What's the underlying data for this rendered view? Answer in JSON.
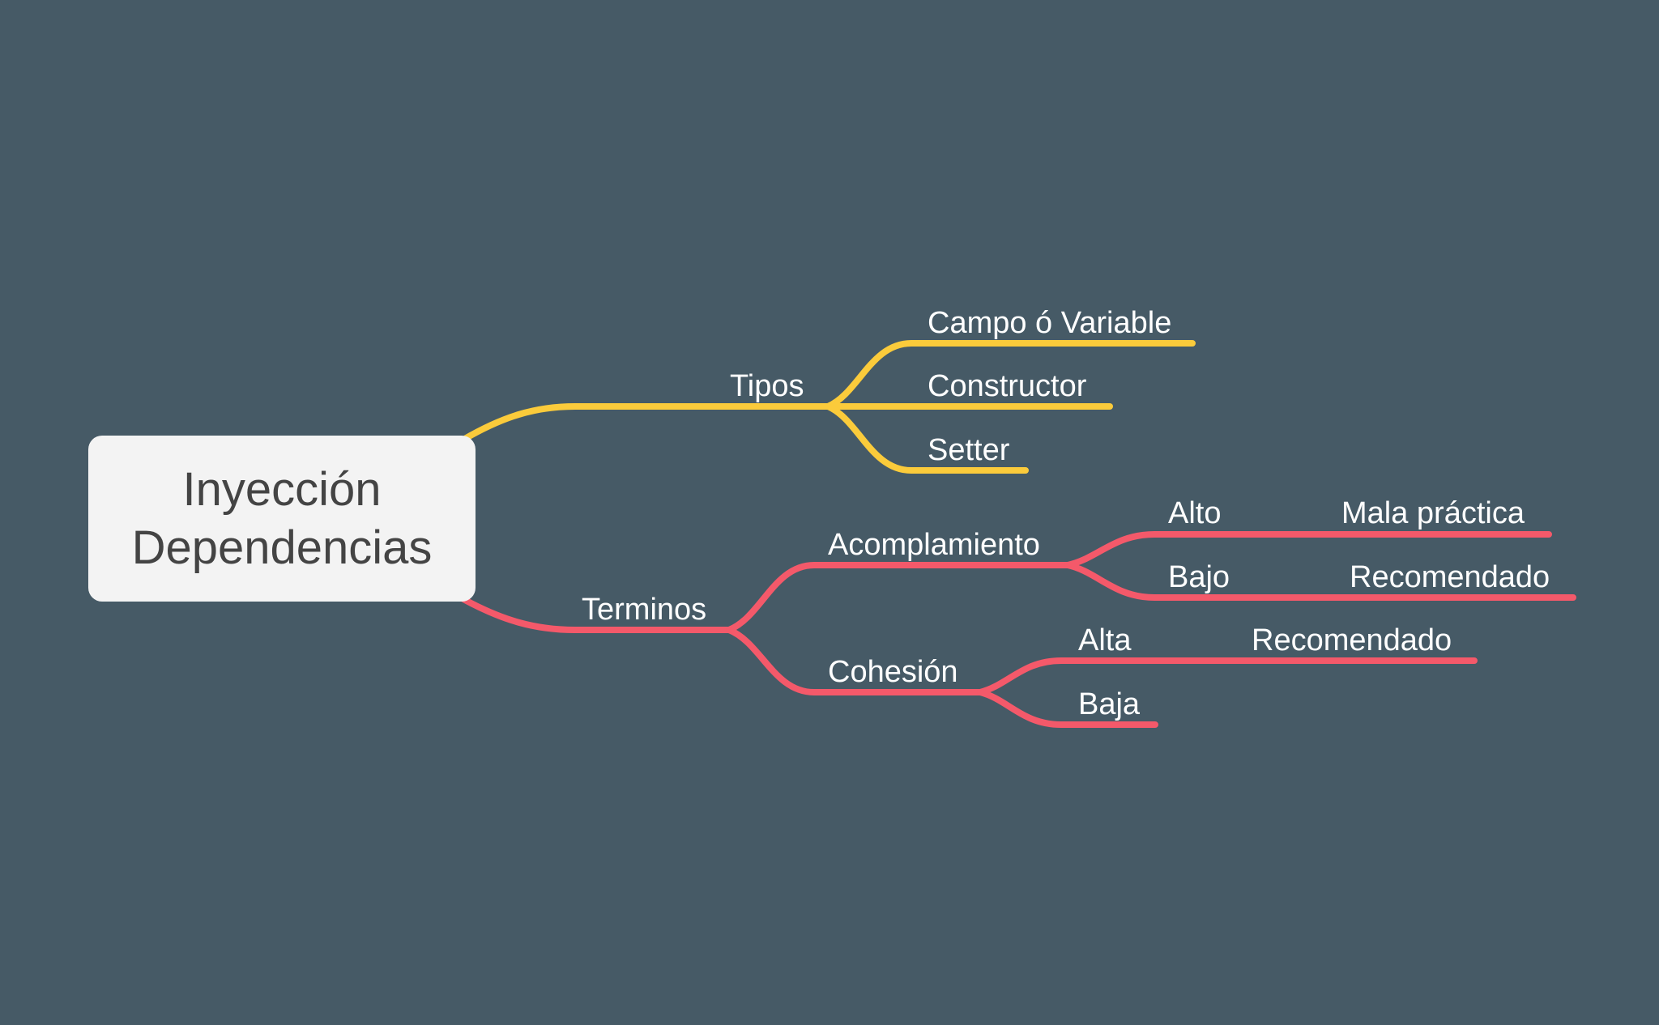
{
  "colors": {
    "background": "#465A66",
    "root_fill": "#F3F3F3",
    "root_text": "#444444",
    "label_text": "#FFFFFF"
  },
  "root": {
    "line1": "Inyección",
    "line2": "Dependencias"
  },
  "branches": [
    {
      "label": "Tipos",
      "color": "#FBCB3B",
      "children": [
        {
          "label": "Campo ó Variable"
        },
        {
          "label": "Constructor"
        },
        {
          "label": "Setter"
        }
      ]
    },
    {
      "label": "Terminos",
      "color": "#F4596A",
      "children": [
        {
          "label": "Acomplamiento",
          "children": [
            {
              "label": "Alto",
              "children": [
                {
                  "label": "Mala práctica"
                }
              ]
            },
            {
              "label": "Bajo",
              "children": [
                {
                  "label": "Recomendado"
                }
              ]
            }
          ]
        },
        {
          "label": "Cohesión",
          "children": [
            {
              "label": "Alta",
              "children": [
                {
                  "label": "Recomendado"
                }
              ]
            },
            {
              "label": "Baja"
            }
          ]
        }
      ]
    }
  ]
}
